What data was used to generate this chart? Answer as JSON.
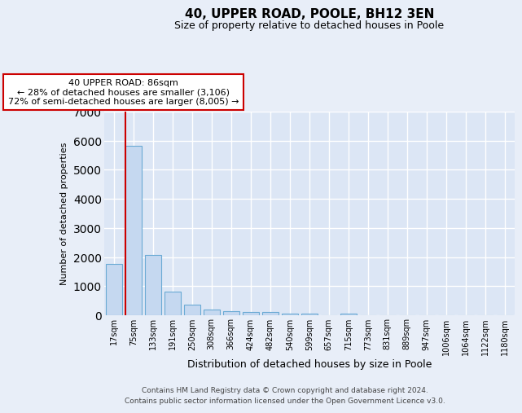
{
  "title": "40, UPPER ROAD, POOLE, BH12 3EN",
  "subtitle": "Size of property relative to detached houses in Poole",
  "xlabel": "Distribution of detached houses by size in Poole",
  "ylabel": "Number of detached properties",
  "bar_labels": [
    "17sqm",
    "75sqm",
    "133sqm",
    "191sqm",
    "250sqm",
    "308sqm",
    "366sqm",
    "424sqm",
    "482sqm",
    "540sqm",
    "599sqm",
    "657sqm",
    "715sqm",
    "773sqm",
    "831sqm",
    "889sqm",
    "947sqm",
    "1006sqm",
    "1064sqm",
    "1122sqm",
    "1180sqm"
  ],
  "bar_values": [
    1760,
    5820,
    2060,
    820,
    360,
    210,
    130,
    110,
    100,
    70,
    55,
    0,
    60,
    0,
    0,
    0,
    0,
    0,
    0,
    0,
    0
  ],
  "bar_color": "#c5d8f0",
  "bar_edge_color": "#6aaad4",
  "highlight_bar_index": 1,
  "highlight_color": "#cc0000",
  "annotation_text": "40 UPPER ROAD: 86sqm\n← 28% of detached houses are smaller (3,106)\n72% of semi-detached houses are larger (8,005) →",
  "annotation_box_facecolor": "#ffffff",
  "annotation_box_edgecolor": "#cc0000",
  "ylim": [
    0,
    7000
  ],
  "yticks": [
    0,
    1000,
    2000,
    3000,
    4000,
    5000,
    6000,
    7000
  ],
  "background_color": "#e8eef8",
  "plot_background_color": "#dce6f5",
  "grid_color": "#ffffff",
  "footer_line1": "Contains HM Land Registry data © Crown copyright and database right 2024.",
  "footer_line2": "Contains public sector information licensed under the Open Government Licence v3.0."
}
